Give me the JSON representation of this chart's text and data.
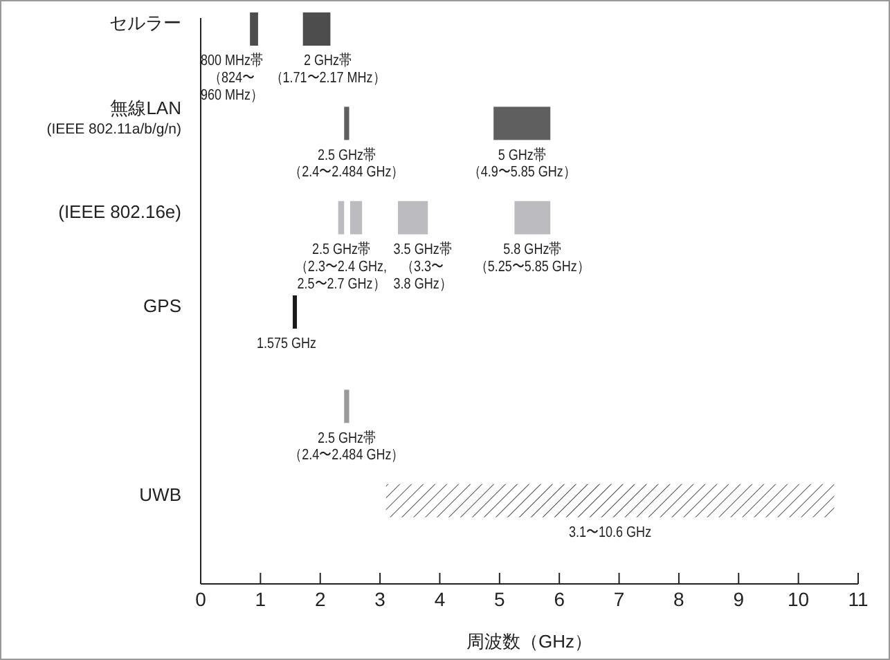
{
  "chart_data": {
    "type": "bar",
    "orientation": "horizontal",
    "xlabel": "周波数（GHz）",
    "categories": [
      "セルラー",
      "無線LAN\n(IEEE 802.11a/b/g/n)",
      "(IEEE 802.16e)",
      "GPS",
      null,
      "UWB"
    ],
    "series": [
      {
        "base": [
          0.824,
          2.4,
          2.3,
          1.575,
          2.4,
          3.1
        ],
        "values": [
          0.136,
          0.084,
          0.1,
          0,
          0.084,
          7.5
        ],
        "colors": [
          "#4d4d4d",
          "#5f5f5f",
          "#bcbcc0",
          "#1a1a1a",
          "#9a9a9a",
          "#ffffff"
        ]
      },
      {
        "base": [
          1.71,
          4.9,
          2.5,
          null,
          null,
          null
        ],
        "values": [
          0.46,
          0.95,
          0.2,
          null,
          null,
          null
        ],
        "colors": [
          "#4d4d4d",
          "#5f5f5f",
          "#bcbcc0",
          null,
          null,
          null
        ]
      },
      {
        "base": [
          null,
          null,
          3.3,
          null,
          null,
          null
        ],
        "values": [
          null,
          null,
          0.5,
          null,
          null,
          null
        ],
        "colors": [
          null,
          null,
          "#bcbcc0",
          null,
          null,
          null
        ]
      },
      {
        "base": [
          null,
          null,
          5.25,
          null,
          null,
          null
        ],
        "values": [
          null,
          null,
          0.6,
          null,
          null,
          null
        ],
        "colors": [
          null,
          null,
          "#bcbcc0",
          null,
          null,
          null
        ]
      }
    ],
    "annotations": [
      "800 MHz帯（824〜960 MHz）",
      "2 GHz帯（1.71〜2.17 MHz）",
      "2.5 GHz帯（2.4〜2.484 GHz）",
      "5 GHz帯（4.9〜5.85 GHz）",
      "2.5 GHz帯（2.3〜2.4 GHz, 2.5〜2.7 GHz）",
      "3.5 GHz帯（3.3〜3.8 GHz）",
      "5.8 GHz帯（5.25〜5.85 GHz）",
      "1.575 GHz",
      "2.5 GHz帯（2.4〜2.484 GHz）",
      "3.1〜10.6 GHz"
    ],
    "xlim": [
      0,
      11
    ],
    "xticks": [
      0,
      1,
      2,
      3,
      4,
      5,
      6,
      7,
      8,
      9,
      10,
      11
    ],
    "grid": false,
    "legend": false
  }
}
